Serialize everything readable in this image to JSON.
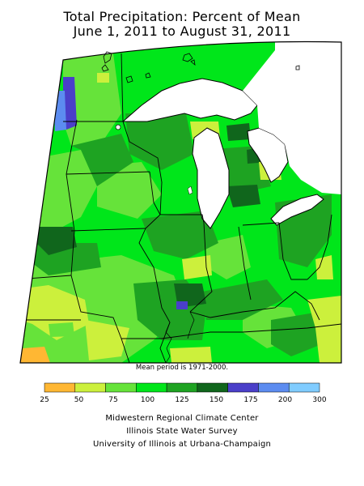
{
  "title": {
    "line1": "Total Precipitation: Percent of Mean",
    "line2": "June 1, 2011 to August 31, 2011"
  },
  "mean_period_note": "Mean period is 1971-2000.",
  "legend": {
    "ticks": [
      "25",
      "50",
      "75",
      "100",
      "125",
      "150",
      "175",
      "200",
      "300"
    ],
    "bins": [
      {
        "from": 25,
        "to": 50,
        "color": "#ffb733"
      },
      {
        "from": 50,
        "to": 75,
        "color": "#ccf03c"
      },
      {
        "from": 75,
        "to": 100,
        "color": "#66e33a"
      },
      {
        "from": 100,
        "to": 125,
        "color": "#00e61a"
      },
      {
        "from": 125,
        "to": 150,
        "color": "#1ea322"
      },
      {
        "from": 150,
        "to": 175,
        "color": "#10661c"
      },
      {
        "from": 175,
        "to": 200,
        "color": "#4a3fc9"
      },
      {
        "from": 200,
        "to": 300,
        "color": "#5c8cf0"
      },
      {
        "from": 300,
        "to": null,
        "color": "#80ccff"
      }
    ]
  },
  "credits": {
    "line1": "Midwestern Regional Climate Center",
    "line2": "Illinois State Water Survey",
    "line3": "University of Illinois at Urbana-Champaign"
  }
}
